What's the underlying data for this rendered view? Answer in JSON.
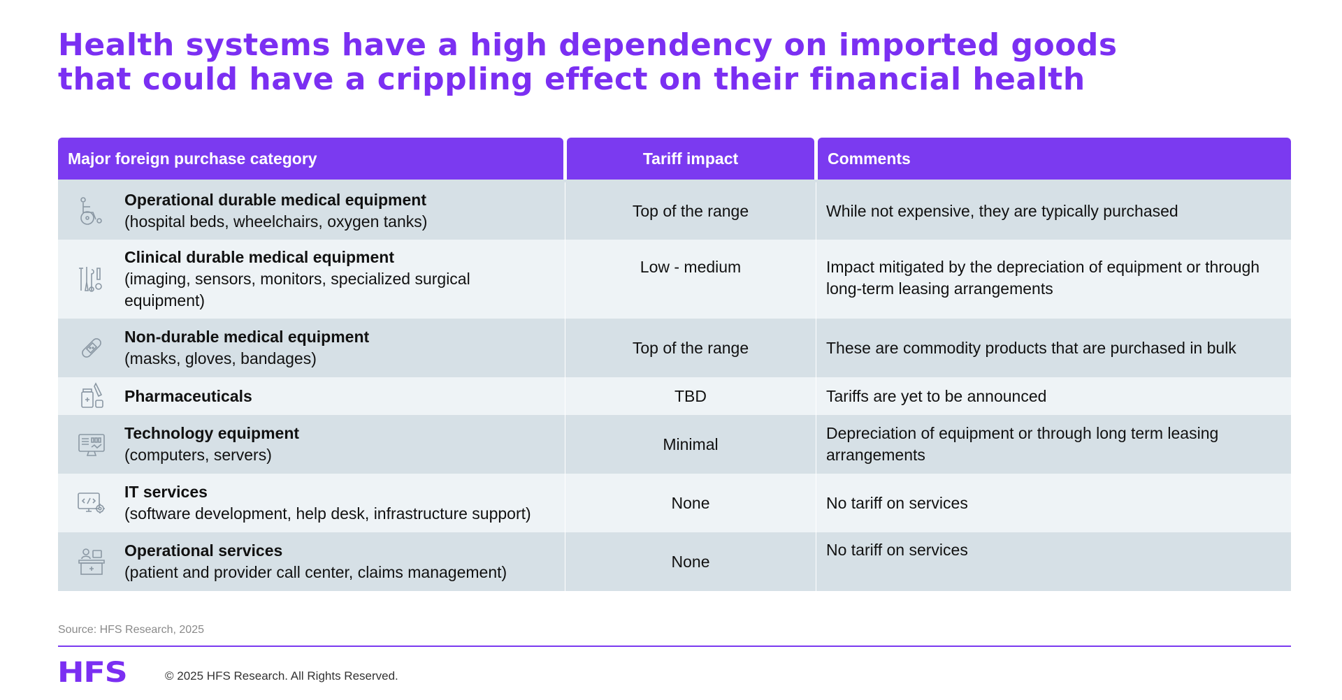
{
  "title": {
    "line1": "Health systems have a high dependency on imported goods",
    "line2": "that could have a crippling effect on their financial health"
  },
  "table": {
    "headers": {
      "category": "Major foreign purchase category",
      "tariff": "Tariff impact",
      "comments": "Comments"
    },
    "rows": [
      {
        "icon": "wheelchair-icon",
        "name": "Operational durable medical equipment",
        "desc": "(hospital beds, wheelchairs, oxygen tanks)",
        "tariff": "Top of the range",
        "comment": "While not expensive, they are typically purchased"
      },
      {
        "icon": "surgical-tools-icon",
        "name": "Clinical durable medical equipment",
        "desc": "(imaging, sensors, monitors, specialized surgical equipment)",
        "tariff": "Low - medium",
        "comment": "Impact mitigated by the depreciation of equipment or through long-term leasing arrangements"
      },
      {
        "icon": "bandage-icon",
        "name": "Non-durable medical equipment",
        "desc": "(masks, gloves, bandages)",
        "tariff": "Top of the range",
        "comment": "These are commodity products that are purchased in bulk"
      },
      {
        "icon": "medicine-bottle-icon",
        "name": "Pharmaceuticals",
        "desc": "",
        "tariff": "TBD",
        "comment": "Tariffs are yet to be announced"
      },
      {
        "icon": "computer-monitor-icon",
        "name": "Technology equipment",
        "desc": "(computers, servers)",
        "tariff": "Minimal",
        "comment": "Depreciation of equipment or through long term leasing arrangements"
      },
      {
        "icon": "code-gear-icon",
        "name": "IT services",
        "desc": "(software development, help desk, infrastructure support)",
        "tariff": "None",
        "comment": "No tariff on services"
      },
      {
        "icon": "call-center-desk-icon",
        "name": "Operational services",
        "desc": "(patient and provider call center, claims management)",
        "tariff": "None",
        "comment": "No tariff on services"
      }
    ]
  },
  "footer": {
    "source": "Source: HFS Research, 2025",
    "logo": "HFS",
    "copyright": "© 2025 HFS Research. All Rights Reserved."
  },
  "colors": {
    "brand_purple": "#7B2FF2",
    "row_dark": "#d6e0e6",
    "row_light": "#eef3f6"
  }
}
